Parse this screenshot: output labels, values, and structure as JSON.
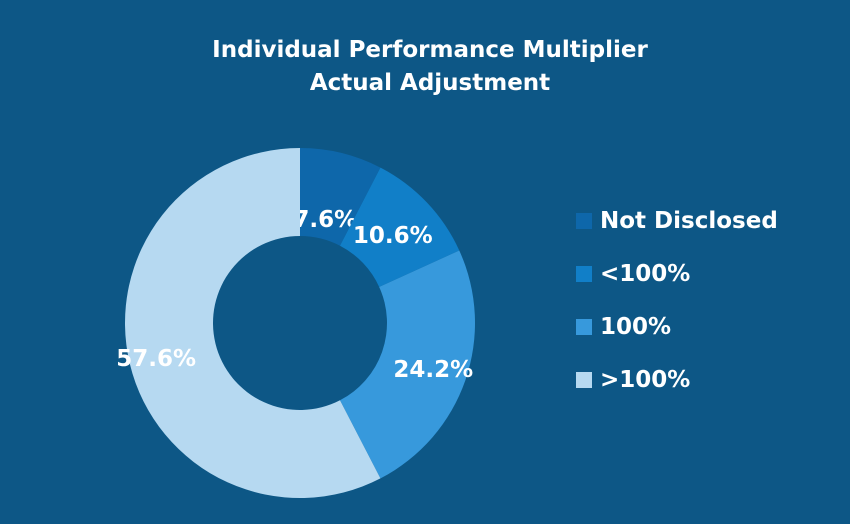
{
  "chart_data": {
    "type": "pie",
    "title": [
      "Individual Performance Multiplier",
      "Actual Adjustment"
    ],
    "categories": [
      "Not Disclosed",
      "<100%",
      "100%",
      ">100%"
    ],
    "values": [
      7.6,
      10.6,
      24.2,
      57.6
    ],
    "labels": [
      "7.6%",
      "10.6%",
      "24.2%",
      "57.6%"
    ],
    "colors": [
      "#0e67aa",
      "#117fc8",
      "#3799dc",
      "#b6d9f1"
    ],
    "donut": true,
    "legend_position": "right"
  }
}
